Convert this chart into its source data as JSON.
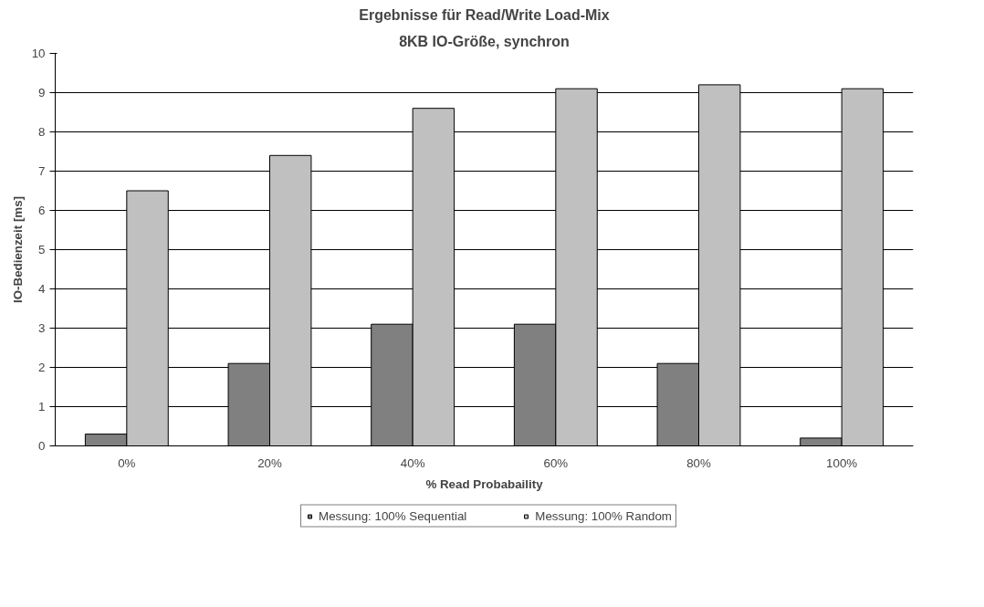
{
  "chart_data": {
    "type": "bar",
    "title": "Ergebnisse für Read/Write Load-Mix",
    "subtitle": "8KB IO-Größe, synchron",
    "xlabel": "% Read Probabaility",
    "ylabel": "IO-Bedienzeit [ms]",
    "categories": [
      "0%",
      "20%",
      "40%",
      "60%",
      "80%",
      "100%"
    ],
    "series": [
      {
        "name": "Messung: 100% Sequential",
        "color": "#808080",
        "values": [
          0.3,
          2.1,
          3.1,
          3.1,
          2.1,
          0.2
        ]
      },
      {
        "name": "Messung: 100% Random",
        "color": "#c0c0c0",
        "values": [
          6.5,
          7.4,
          8.6,
          9.1,
          9.2,
          9.1
        ]
      }
    ],
    "ylim": [
      0,
      10
    ],
    "yticks": [
      0,
      1,
      2,
      3,
      4,
      5,
      6,
      7,
      8,
      9,
      10
    ],
    "grid": "y",
    "legend": "bottom"
  }
}
